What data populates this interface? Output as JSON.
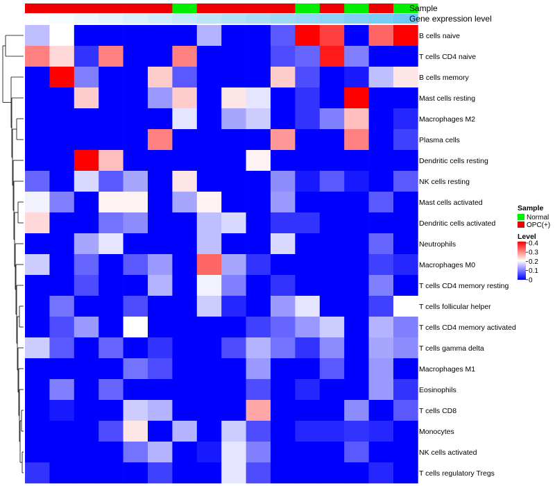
{
  "chart_data": {
    "type": "heatmap",
    "annotations": {
      "sample_label": "Sample",
      "gene_label": "Gene expression level",
      "sample_values": [
        "OPC(+)",
        "OPC(+)",
        "OPC(+)",
        "OPC(+)",
        "OPC(+)",
        "OPC(+)",
        "Normal",
        "OPC(+)",
        "OPC(+)",
        "OPC(+)",
        "OPC(+)",
        "Normal",
        "OPC(+)",
        "Normal",
        "OPC(+)",
        "Normal"
      ]
    },
    "rows": [
      {
        "label": "B cells naive",
        "values": [
          0.15,
          0.2,
          0,
          0,
          0,
          0,
          0,
          0.14,
          0,
          0,
          0.07,
          0.4,
          0.35,
          0,
          0.32,
          0.4
        ]
      },
      {
        "label": "T cells CD4 naive",
        "values": [
          0.3,
          0.23,
          0.04,
          0.3,
          0,
          0,
          0.3,
          0,
          0,
          0,
          0.06,
          0.08,
          0.38,
          0.1,
          0,
          0
        ]
      },
      {
        "label": "B cells memory",
        "values": [
          0,
          0.4,
          0.1,
          0,
          0,
          0.24,
          0.07,
          0,
          0,
          0,
          0.24,
          0.06,
          0,
          0.02,
          0.15,
          0.22
        ]
      },
      {
        "label": "Mast cells resting",
        "values": [
          0,
          0,
          0.24,
          0,
          0,
          0.12,
          0.24,
          0,
          0.22,
          0.18,
          0,
          0.04,
          0,
          0.4,
          0,
          0
        ]
      },
      {
        "label": "Macrophages M2",
        "values": [
          0,
          0,
          0,
          0,
          0,
          0,
          0.18,
          0,
          0.13,
          0.16,
          0,
          0.04,
          0.1,
          0.25,
          0,
          0.03
        ]
      },
      {
        "label": "Plasma cells",
        "values": [
          0,
          0,
          0,
          0,
          0,
          0.3,
          0,
          0,
          0,
          0,
          0.28,
          0,
          0,
          0.3,
          0,
          0.05
        ]
      },
      {
        "label": "Dendritic cells resting",
        "values": [
          0,
          0,
          0.4,
          0.25,
          0,
          0,
          0,
          0,
          0,
          0.21,
          0,
          0,
          0,
          0,
          0,
          0
        ]
      },
      {
        "label": "NK cells resting",
        "values": [
          0.08,
          0,
          0.17,
          0.07,
          0.13,
          0,
          0.22,
          0,
          0,
          0,
          0.11,
          0.02,
          0.07,
          0.02,
          0,
          0.07
        ]
      },
      {
        "label": "Mast cells activated",
        "values": [
          0.19,
          0.1,
          0,
          0.21,
          0.21,
          0,
          0.13,
          0.21,
          0,
          0,
          0.12,
          0,
          0,
          0,
          0.07,
          0
        ]
      },
      {
        "label": "Dendritic cells activated",
        "values": [
          0.23,
          0,
          0,
          0.09,
          0.11,
          0,
          0,
          0.15,
          0.17,
          0,
          0.04,
          0.04,
          0,
          0,
          0,
          0
        ]
      },
      {
        "label": "Neutrophils",
        "values": [
          0,
          0,
          0.13,
          0.18,
          0,
          0,
          0,
          0.15,
          0,
          0,
          0.17,
          0,
          0,
          0,
          0.08,
          0
        ]
      },
      {
        "label": "Macrophages M0",
        "values": [
          0.16,
          0,
          0.08,
          0,
          0.07,
          0.12,
          0,
          0.32,
          0.13,
          0.04,
          0,
          0,
          0,
          0,
          0.05,
          0.03
        ]
      },
      {
        "label": "T cells CD4 memory resting",
        "values": [
          0,
          0,
          0.06,
          0,
          0,
          0.14,
          0,
          0.19,
          0.1,
          0,
          0.04,
          0,
          0,
          0,
          0.1,
          0
        ]
      },
      {
        "label": "T cells follicular helper",
        "values": [
          0,
          0.09,
          0,
          0,
          0.06,
          0,
          0,
          0.16,
          0.03,
          0,
          0.12,
          0.18,
          0,
          0,
          0.05,
          0.2
        ]
      },
      {
        "label": "T cells CD4 memory activated",
        "values": [
          0,
          0.06,
          0.12,
          0,
          0.2,
          0,
          0,
          0,
          0,
          0.05,
          0.08,
          0.12,
          0.16,
          0,
          0.14,
          0.1
        ]
      },
      {
        "label": "T cells gamma delta",
        "values": [
          0.16,
          0.07,
          0,
          0.08,
          0,
          0.04,
          0,
          0,
          0.06,
          0.14,
          0.09,
          0.04,
          0.11,
          0,
          0.13,
          0.11
        ]
      },
      {
        "label": "Macrophages M1",
        "values": [
          0,
          0,
          0,
          0,
          0.09,
          0.06,
          0,
          0,
          0,
          0.12,
          0,
          0,
          0.07,
          0,
          0.12,
          0
        ]
      },
      {
        "label": "Eosinophils",
        "values": [
          0,
          0.1,
          0,
          0.08,
          0,
          0,
          0,
          0,
          0,
          0.06,
          0,
          0.03,
          0,
          0,
          0.12,
          0.04
        ]
      },
      {
        "label": "T cells CD8",
        "values": [
          0,
          0.02,
          0,
          0,
          0.16,
          0.14,
          0,
          0,
          0,
          0.27,
          0,
          0,
          0,
          0.11,
          0,
          0.07
        ]
      },
      {
        "label": "Monocytes",
        "values": [
          0,
          0,
          0,
          0.06,
          0.22,
          0,
          0.14,
          0,
          0.16,
          0.06,
          0,
          0.03,
          0.03,
          0.04,
          0.03,
          0
        ]
      },
      {
        "label": "NK cells activated",
        "values": [
          0,
          0,
          0,
          0,
          0.09,
          0.14,
          0,
          0.02,
          0.18,
          0.1,
          0,
          0,
          0,
          0.07,
          0,
          0
        ]
      },
      {
        "label": "T cells regulatory  Tregs",
        "values": [
          0.04,
          0,
          0,
          0,
          0,
          0.05,
          0,
          0,
          0.18,
          0.06,
          0,
          0,
          0,
          0,
          0.03,
          0
        ]
      }
    ],
    "legend": {
      "sample_title": "Sample",
      "sample_entries": [
        {
          "label": "Normal",
          "color": "#00ee00"
        },
        {
          "label": "OPC(+)",
          "color": "#ee0000"
        }
      ],
      "level_title": "Level",
      "level_ticks": [
        "0.4",
        "0.3",
        "0.2",
        "0.1",
        "0"
      ]
    },
    "color_scale": {
      "min": 0,
      "mid": 0.2,
      "max": 0.4,
      "low": "#0000ff",
      "mid_color": "#ffffff",
      "high": "#ff0000"
    },
    "xlabel": "",
    "ylabel": ""
  }
}
